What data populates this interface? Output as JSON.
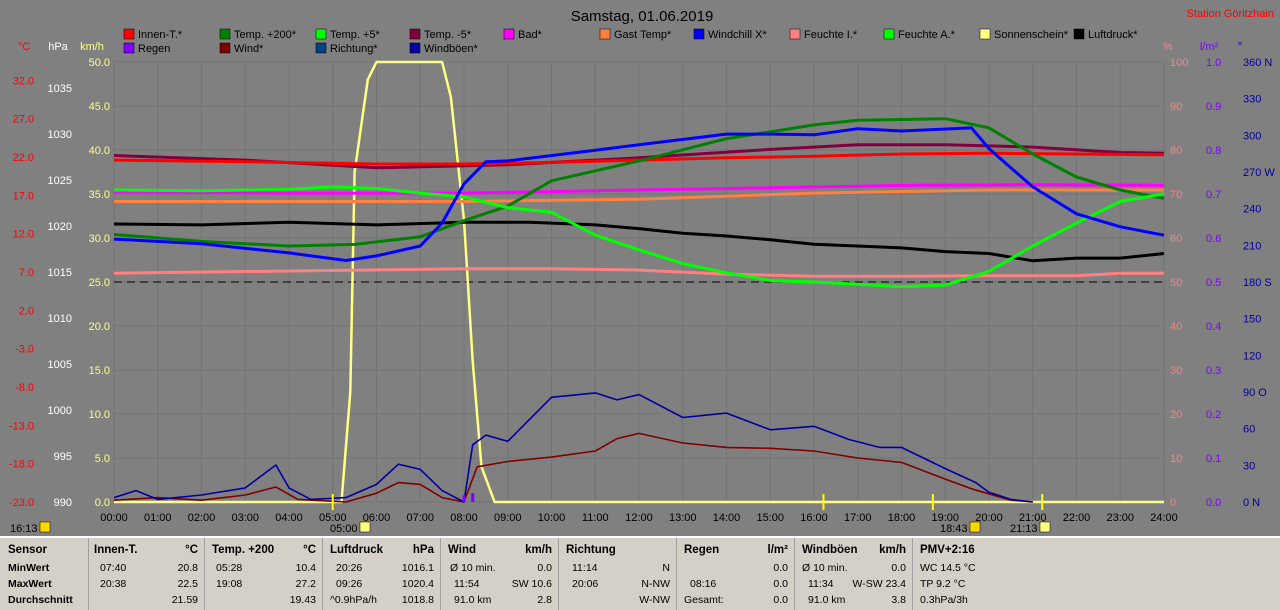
{
  "title": "Samstag, 01.06.2019",
  "station": "Station Göritzhain",
  "legend": [
    {
      "name": "Innen-T.*",
      "color": "#ff0000"
    },
    {
      "name": "Temp. +200*",
      "color": "#008000"
    },
    {
      "name": "Temp. +5*",
      "color": "#00ff00"
    },
    {
      "name": "Temp. -5*",
      "color": "#800040"
    },
    {
      "name": "Bad*",
      "color": "#ff00ff"
    },
    {
      "name": "Gast Temp*",
      "color": "#ff8040"
    },
    {
      "name": "Windchill X*",
      "color": "#0000ff"
    },
    {
      "name": "Feuchte I.*",
      "color": "#ff8080"
    },
    {
      "name": "Feuchte A.*",
      "color": "#00ff00"
    },
    {
      "name": "Sonnenschein*",
      "color": "#ffff80"
    },
    {
      "name": "Luftdruck*",
      "color": "#000000"
    },
    {
      "name": "Regen",
      "color": "#8000ff"
    },
    {
      "name": "Wind*",
      "color": "#800000"
    },
    {
      "name": "Richtung*",
      "color": "#004080"
    },
    {
      "name": "Windböen*",
      "color": "#0000a0"
    }
  ],
  "axes": {
    "celsius": {
      "unit": "°C",
      "ticks": [
        "32.0",
        "27.0",
        "22.0",
        "17.0",
        "12.0",
        "7.0",
        "2.0",
        "-3.0",
        "-8.0",
        "-13.0",
        "-18.0",
        "-23.0"
      ],
      "color": "#ff0000"
    },
    "hpa": {
      "unit": "hPa",
      "ticks": [
        "1035",
        "1030",
        "1025",
        "1020",
        "1015",
        "1010",
        "1005",
        "1000",
        "995",
        "990"
      ],
      "color": "#ffffff"
    },
    "kmh": {
      "unit": "km/h",
      "ticks": [
        "50.0",
        "45.0",
        "40.0",
        "35.0",
        "30.0",
        "25.0",
        "20.0",
        "15.0",
        "10.0",
        "5.0",
        "0.0"
      ],
      "color": "#ffff80"
    },
    "percent": {
      "unit": "%",
      "ticks": [
        "100",
        "90",
        "80",
        "70",
        "60",
        "50",
        "40",
        "30",
        "20",
        "10",
        "0"
      ],
      "color": "#ff8080"
    },
    "rain": {
      "unit": "l/m²",
      "ticks": [
        "1.0",
        "0.9",
        "0.8",
        "0.7",
        "0.6",
        "0.5",
        "0.4",
        "0.3",
        "0.2",
        "0.1",
        "0.0"
      ],
      "color": "#8000ff"
    },
    "direction": {
      "unit": "°",
      "ticks": [
        "360 N",
        "330",
        "300",
        "270 W",
        "240",
        "210",
        "180 S",
        "150",
        "120",
        "90 O",
        "60",
        "30",
        "0 N"
      ],
      "color": "#0000a0"
    },
    "time": [
      "00:00",
      "01:00",
      "02:00",
      "03:00",
      "04:00",
      "05:00",
      "06:00",
      "07:00",
      "08:00",
      "09:00",
      "10:00",
      "11:00",
      "12:00",
      "13:00",
      "14:00",
      "15:00",
      "16:00",
      "17:00",
      "18:00",
      "19:00",
      "20:00",
      "21:00",
      "22:00",
      "23:00",
      "24:00"
    ]
  },
  "markers": {
    "moonset": "16:13",
    "sunrise": "05:00",
    "moonrise": "18:43",
    "sunset": "21:13"
  },
  "chart_data": {
    "type": "line",
    "x_unit": "hours",
    "series": [
      {
        "name": "Innen-T.*",
        "axis": "celsius",
        "color": "#ff0000",
        "points": [
          [
            0,
            21.6
          ],
          [
            3,
            21.4
          ],
          [
            6,
            21.1
          ],
          [
            8,
            21.1
          ],
          [
            10,
            21.3
          ],
          [
            12,
            21.6
          ],
          [
            14,
            21.9
          ],
          [
            16,
            22.1
          ],
          [
            18,
            22.4
          ],
          [
            20,
            22.5
          ],
          [
            22,
            22.4
          ],
          [
            24,
            22.3
          ]
        ]
      },
      {
        "name": "Temp. +200*",
        "axis": "celsius",
        "color": "#008000",
        "points": [
          [
            0,
            11.9
          ],
          [
            2,
            11.0
          ],
          [
            4,
            10.4
          ],
          [
            5.5,
            10.6
          ],
          [
            7,
            11.6
          ],
          [
            8,
            13.7
          ],
          [
            9,
            15.6
          ],
          [
            10,
            18.9
          ],
          [
            12,
            21.5
          ],
          [
            14,
            24.4
          ],
          [
            16,
            26.2
          ],
          [
            17,
            26.8
          ],
          [
            19,
            27.0
          ],
          [
            20,
            25.8
          ],
          [
            21,
            22.4
          ],
          [
            22,
            19.4
          ],
          [
            23,
            17.7
          ],
          [
            24,
            16.6
          ]
        ]
      },
      {
        "name": "Temp. +5*",
        "axis": "celsius",
        "color": "#00ff00",
        "points": [
          [
            0,
            17.7
          ],
          [
            2,
            17.6
          ],
          [
            4,
            17.8
          ],
          [
            5,
            18.1
          ],
          [
            6,
            17.9
          ],
          [
            7,
            17.3
          ],
          [
            8,
            16.8
          ],
          [
            9,
            15.4
          ],
          [
            10,
            14.8
          ],
          [
            11,
            11.8
          ],
          [
            12,
            9.9
          ],
          [
            13,
            8.1
          ],
          [
            14,
            6.9
          ],
          [
            15,
            5.9
          ],
          [
            16,
            5.7
          ],
          [
            17,
            5.4
          ],
          [
            18,
            5.1
          ],
          [
            19,
            5.3
          ],
          [
            20,
            7.1
          ],
          [
            21,
            10.4
          ],
          [
            22,
            13.4
          ],
          [
            23,
            16.2
          ],
          [
            24,
            17.2
          ]
        ]
      },
      {
        "name": "Temp. -5*",
        "axis": "celsius",
        "color": "#800040",
        "points": [
          [
            0,
            22.2
          ],
          [
            3,
            21.6
          ],
          [
            6,
            20.6
          ],
          [
            9,
            21.0
          ],
          [
            12,
            21.9
          ],
          [
            15,
            23.0
          ],
          [
            17,
            23.6
          ],
          [
            19,
            23.6
          ],
          [
            21,
            23.3
          ],
          [
            23,
            22.6
          ],
          [
            24,
            22.5
          ]
        ]
      },
      {
        "name": "Bad*",
        "axis": "celsius",
        "color": "#ff00ff",
        "points": [
          [
            0,
            17.5
          ],
          [
            4,
            17.3
          ],
          [
            8,
            17.3
          ],
          [
            12,
            17.7
          ],
          [
            15,
            18.0
          ],
          [
            18,
            18.3
          ],
          [
            21,
            18.4
          ],
          [
            24,
            18.3
          ]
        ]
      },
      {
        "name": "Gast Temp*",
        "axis": "celsius",
        "color": "#ff8040",
        "points": [
          [
            0,
            16.2
          ],
          [
            4,
            16.2
          ],
          [
            8,
            16.2
          ],
          [
            12,
            16.5
          ],
          [
            16,
            17.3
          ],
          [
            20,
            17.7
          ],
          [
            24,
            17.7
          ]
        ]
      },
      {
        "name": "Windchill X*",
        "axis": "celsius",
        "color": "#0000ff",
        "points": [
          [
            0,
            11.3
          ],
          [
            2,
            10.7
          ],
          [
            4,
            9.5
          ],
          [
            5.3,
            8.5
          ],
          [
            6,
            9.1
          ],
          [
            7,
            10.4
          ],
          [
            7.5,
            13.4
          ],
          [
            8,
            18.5
          ],
          [
            8.5,
            21.4
          ],
          [
            9,
            21.5
          ],
          [
            11,
            22.9
          ],
          [
            12,
            23.6
          ],
          [
            14,
            25.0
          ],
          [
            15,
            25.0
          ],
          [
            16,
            24.9
          ],
          [
            17,
            25.7
          ],
          [
            18,
            25.4
          ],
          [
            19.6,
            25.8
          ],
          [
            20,
            23.1
          ],
          [
            21,
            18.1
          ],
          [
            22,
            14.6
          ],
          [
            23,
            12.9
          ],
          [
            24,
            11.8
          ]
        ]
      },
      {
        "name": "Feuchte I.*",
        "axis": "percent",
        "color": "#ff8080",
        "points": [
          [
            0,
            52
          ],
          [
            4,
            52.5
          ],
          [
            8,
            53
          ],
          [
            10,
            53
          ],
          [
            12,
            52.7
          ],
          [
            14,
            51.8
          ],
          [
            16,
            51.3
          ],
          [
            18,
            51.3
          ],
          [
            20,
            51.4
          ],
          [
            22,
            51.4
          ],
          [
            23,
            52
          ],
          [
            24,
            52
          ]
        ]
      },
      {
        "name": "Luftdruck*",
        "axis": "hpa",
        "color": "#000000",
        "points": [
          [
            0,
            1020.2
          ],
          [
            2,
            1020.1
          ],
          [
            4,
            1020.4
          ],
          [
            6,
            1020.1
          ],
          [
            8,
            1020.4
          ],
          [
            9.5,
            1020.4
          ],
          [
            11,
            1020.1
          ],
          [
            12,
            1019.7
          ],
          [
            13,
            1019.2
          ],
          [
            14,
            1018.9
          ],
          [
            15,
            1018.5
          ],
          [
            16,
            1018.0
          ],
          [
            18,
            1017.6
          ],
          [
            19,
            1017.2
          ],
          [
            20,
            1017.0
          ],
          [
            21,
            1016.2
          ],
          [
            22,
            1016.5
          ],
          [
            23,
            1016.5
          ],
          [
            24,
            1017.0
          ]
        ]
      },
      {
        "name": "Sonnenschein*",
        "axis": "percent",
        "color": "#ffff80",
        "points": [
          [
            0,
            0
          ],
          [
            5.2,
            0
          ],
          [
            5.4,
            25
          ],
          [
            5.5,
            75
          ],
          [
            5.8,
            96
          ],
          [
            6,
            100
          ],
          [
            7.5,
            100
          ],
          [
            7.6,
            96
          ],
          [
            7.7,
            92
          ],
          [
            8,
            64
          ],
          [
            8.2,
            32
          ],
          [
            8.4,
            8
          ],
          [
            8.7,
            0
          ],
          [
            24,
            0
          ]
        ]
      },
      {
        "name": "Wind*",
        "axis": "kmh",
        "color": "#800000",
        "points": [
          [
            0,
            0.2
          ],
          [
            1,
            0.5
          ],
          [
            2,
            0.2
          ],
          [
            3,
            0.8
          ],
          [
            3.7,
            1.7
          ],
          [
            4.2,
            0.3
          ],
          [
            5.3,
            0
          ],
          [
            6,
            1.0
          ],
          [
            6.5,
            2.2
          ],
          [
            7,
            2.0
          ],
          [
            7.5,
            0.5
          ],
          [
            8,
            0
          ],
          [
            8.3,
            4.0
          ],
          [
            9,
            4.6
          ],
          [
            10,
            5.1
          ],
          [
            11,
            5.8
          ],
          [
            11.5,
            7.2
          ],
          [
            12,
            7.8
          ],
          [
            13,
            6.7
          ],
          [
            14,
            6.2
          ],
          [
            15,
            6.1
          ],
          [
            16,
            5.8
          ],
          [
            17,
            5.0
          ],
          [
            18,
            4.5
          ],
          [
            19,
            2.6
          ],
          [
            19.6,
            1.5
          ],
          [
            20.5,
            0.2
          ],
          [
            21,
            0
          ]
        ]
      },
      {
        "name": "Windböen*",
        "axis": "kmh",
        "color": "#0000a0",
        "points": [
          [
            0,
            0.5
          ],
          [
            0.5,
            1.3
          ],
          [
            1,
            0.3
          ],
          [
            2,
            0.8
          ],
          [
            3,
            1.6
          ],
          [
            3.7,
            4.2
          ],
          [
            4,
            1.6
          ],
          [
            4.5,
            0.3
          ],
          [
            5.3,
            0.5
          ],
          [
            6,
            2.0
          ],
          [
            6.5,
            4.3
          ],
          [
            7,
            3.7
          ],
          [
            7.5,
            1.3
          ],
          [
            8,
            0
          ],
          [
            8.2,
            6.5
          ],
          [
            8.5,
            7.6
          ],
          [
            9,
            6.9
          ],
          [
            10,
            11.9
          ],
          [
            11,
            12.4
          ],
          [
            11.5,
            11.6
          ],
          [
            12,
            12.2
          ],
          [
            13,
            9.6
          ],
          [
            14,
            10.1
          ],
          [
            15,
            8.2
          ],
          [
            16,
            8.6
          ],
          [
            16.8,
            7.1
          ],
          [
            17.5,
            6.2
          ],
          [
            18,
            6.2
          ],
          [
            19,
            3.8
          ],
          [
            19.7,
            2.2
          ],
          [
            20,
            1.1
          ],
          [
            20.5,
            0.3
          ],
          [
            21,
            0
          ]
        ]
      },
      {
        "name": "Regen",
        "axis": "rain",
        "color": "#8000ff",
        "points": [
          [
            0,
            0
          ],
          [
            7.9,
            0
          ],
          [
            8.0,
            0.015
          ],
          [
            8.1,
            0
          ],
          [
            8.2,
            0.02
          ],
          [
            8.3,
            0
          ],
          [
            24,
            0
          ]
        ]
      }
    ]
  },
  "stats": {
    "sensor": {
      "header": "Sensor",
      "rows": [
        "MinWert",
        "MaxWert",
        "Durchschnitt"
      ]
    },
    "innen": {
      "header": "Innen-T.",
      "unit": "°C",
      "rows": [
        [
          "07:40",
          "20.8"
        ],
        [
          "20:38",
          "22.5"
        ],
        [
          "",
          "21.59"
        ]
      ]
    },
    "temp200": {
      "header": "Temp. +200",
      "unit": "°C",
      "rows": [
        [
          "05:28",
          "10.4"
        ],
        [
          "19:08",
          "27.2"
        ],
        [
          "",
          "19.43"
        ]
      ]
    },
    "luft": {
      "header": "Luftdruck",
      "unit": "hPa",
      "rows": [
        [
          "20:26",
          "1016.1"
        ],
        [
          "09:26",
          "1020.4"
        ],
        [
          "^0.9hPa/h",
          "1018.8"
        ]
      ]
    },
    "wind": {
      "header": "Wind",
      "unit": "km/h",
      "rows": [
        [
          "Ø 10 min.",
          "0.0"
        ],
        [
          "11:54",
          "SW 10.6"
        ],
        [
          "91.0 km",
          "2.8"
        ]
      ]
    },
    "richtung": {
      "header": "Richtung",
      "rows": [
        [
          "11:14",
          "N"
        ],
        [
          "20:06",
          "N-NW"
        ],
        [
          "",
          "W-NW"
        ]
      ]
    },
    "regen": {
      "header": "Regen",
      "unit": "l/m²",
      "rows": [
        [
          "",
          "0.0"
        ],
        [
          "08:16",
          "0.0"
        ],
        [
          "Gesamt:",
          "0.0"
        ]
      ]
    },
    "boeen": {
      "header": "Windböen",
      "unit": "km/h",
      "rows": [
        [
          "Ø 10 min.",
          "0.0"
        ],
        [
          "11:34",
          "W-SW 23.4"
        ],
        [
          "91.0 km",
          "3.8"
        ]
      ]
    },
    "pmv": {
      "header": "PMV+2:16",
      "rows": [
        "WC 14.5 °C",
        "TP 9.2 °C",
        "0.3hPa/3h"
      ]
    }
  }
}
